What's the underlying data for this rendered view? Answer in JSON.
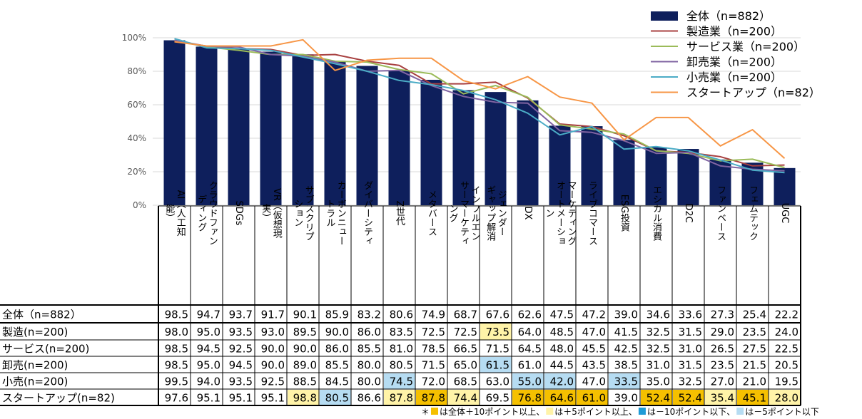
{
  "chart_data": {
    "type": "bar",
    "ylim": [
      0,
      100
    ],
    "ytick_labels": [
      "0%",
      "20%",
      "40%",
      "60%",
      "80%",
      "100%"
    ],
    "categories": [
      "AI（人工知能）",
      "クラウドファンディング",
      "SDGs",
      "VR（仮想現実）",
      "サブスクリプション",
      "カーボンニュートラル",
      "ダイバーシティ",
      "Z世代",
      "メタバース",
      "インフルエンサーマーケティング",
      "ジェンダーギャップ解消",
      "DX",
      "マーケティングオートメーション",
      "ライブコマース",
      "ESG投資",
      "エシカル消費",
      "D2C",
      "ファンベース",
      "フェムテック",
      "UGC"
    ],
    "category_columns": [
      [
        "能）",
        "AI（人工知"
      ],
      [
        "ディング",
        "クラウドファン"
      ],
      [
        "SDGs"
      ],
      [
        "実）",
        "VR（仮想現"
      ],
      [
        "ション",
        "サブスクリプ"
      ],
      [
        "トラル",
        "カーボンニュー"
      ],
      [
        "ダイバーシティ"
      ],
      [
        "Z世代"
      ],
      [
        "メタバース"
      ],
      [
        "ング",
        "サーマーケティ",
        "インフルエン"
      ],
      [
        "ギャップ解消",
        "ジェンダー"
      ],
      [
        "DX"
      ],
      [
        "ン",
        "オートメーショ",
        "マーケティング"
      ],
      [
        "ライブコマース"
      ],
      [
        "ESG投資"
      ],
      [
        "エシカル消費"
      ],
      [
        "D2C"
      ],
      [
        "ファンベース"
      ],
      [
        "フェムテック"
      ],
      [
        "UGC"
      ]
    ],
    "series": [
      {
        "name": "全体（n=882）",
        "table_label": "全体（n=882）",
        "kind": "bar",
        "color": "#0e1f5c",
        "values": [
          98.5,
          94.7,
          93.7,
          91.7,
          90.1,
          85.9,
          83.2,
          80.6,
          74.9,
          68.7,
          67.6,
          62.6,
          47.5,
          47.2,
          39.0,
          34.6,
          33.6,
          27.3,
          25.4,
          22.2
        ]
      },
      {
        "name": "製造業（n=200）",
        "table_label": "製造(n=200)",
        "kind": "line",
        "color": "#a84040",
        "values": [
          98.0,
          95.0,
          93.5,
          93.0,
          89.5,
          90.0,
          86.0,
          83.5,
          72.5,
          72.5,
          73.5,
          64.0,
          48.5,
          47.0,
          41.5,
          32.5,
          31.5,
          29.0,
          23.5,
          24.0
        ]
      },
      {
        "name": "サービス業（n=200）",
        "table_label": "サービス(n=200)",
        "kind": "line",
        "color": "#9bbb59",
        "values": [
          98.5,
          94.5,
          92.5,
          90.0,
          90.0,
          86.0,
          85.5,
          81.0,
          78.5,
          66.5,
          71.5,
          64.5,
          48.0,
          45.5,
          42.5,
          32.5,
          31.0,
          26.5,
          27.5,
          22.5
        ]
      },
      {
        "name": "卸売業（n=200）",
        "table_label": "卸売(n=200)",
        "kind": "line",
        "color": "#8064a2",
        "values": [
          98.5,
          95.0,
          94.5,
          90.0,
          89.0,
          85.5,
          80.0,
          80.5,
          71.5,
          65.0,
          61.5,
          61.0,
          44.5,
          43.5,
          38.5,
          31.0,
          31.5,
          23.5,
          21.5,
          20.5
        ]
      },
      {
        "name": "小売業（n=200）",
        "table_label": "小売(n=200)",
        "kind": "line",
        "color": "#4bacc6",
        "values": [
          99.5,
          94.0,
          93.5,
          92.5,
          88.5,
          84.5,
          80.0,
          74.5,
          72.0,
          68.5,
          63.0,
          55.0,
          42.0,
          47.0,
          33.5,
          35.0,
          32.5,
          27.0,
          21.0,
          19.5
        ]
      },
      {
        "name": "スタートアップ（n=82）",
        "table_label": "スタートアップ(n=82)",
        "kind": "line",
        "color": "#f79646",
        "values": [
          97.6,
          95.1,
          95.1,
          95.1,
          98.8,
          80.5,
          86.6,
          87.8,
          87.8,
          74.4,
          69.5,
          76.8,
          64.6,
          61.0,
          39.0,
          52.4,
          52.4,
          35.4,
          45.1,
          28.0
        ]
      }
    ],
    "highlight_colors": {
      "plus10": "#f5c000",
      "plus5": "#fff3a8",
      "minus10": "#1f9bd6",
      "minus5": "#b6dcf2"
    },
    "footnote": "＊ ■は全体＋10ポイント以上、■は＋5ポイント以上、■は－10ポイント以下、■は－5ポイント以下",
    "footnote_parts": [
      {
        "text": "＊",
        "swatch": null
      },
      {
        "text": "は全体＋10ポイント以上、",
        "swatch": "plus10"
      },
      {
        "text": "は＋5ポイント以上、",
        "swatch": "plus5"
      },
      {
        "text": "は－10ポイント以下、",
        "swatch": "minus10"
      },
      {
        "text": "は－5ポイント以下",
        "swatch": "minus5"
      }
    ]
  }
}
